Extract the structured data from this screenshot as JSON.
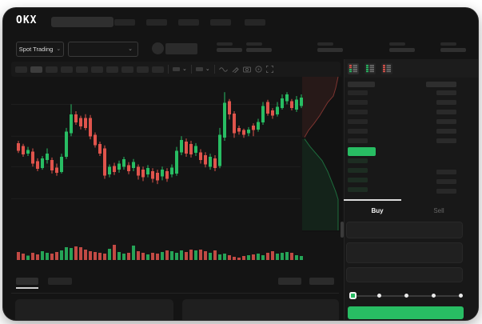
{
  "app": {
    "logo_text": "OKX"
  },
  "colors": {
    "green": "#28bd63",
    "red": "#e0544c",
    "accent": "#28bd63"
  },
  "header": {
    "nav_item_count": 5
  },
  "market_bar": {
    "selector_label": "Spot Trading",
    "selector_chevron": "⌄",
    "pair_chevron": "⌄",
    "stat_group_count": 5
  },
  "chart_toolbar": {
    "interval_pill_count": 10,
    "active_interval_index": 1,
    "icon_names": [
      "wave-icon",
      "pencil-icon",
      "camera-icon",
      "target-icon",
      "expand-icon"
    ]
  },
  "orderbook": {
    "view_toggles": [
      "combined-book",
      "bids-only",
      "asks-only"
    ],
    "active_toggle_index": 0,
    "ask_row_count": 6,
    "bid_row_count": 4,
    "last_price_color": "#28bd63"
  },
  "trade_panel": {
    "tabs": [
      {
        "label": "Buy",
        "active": true
      },
      {
        "label": "Sell",
        "active": false
      }
    ],
    "input_field_count": 3,
    "slider": {
      "stops": 5,
      "active_stop": 0
    },
    "submit_color": "#28bd63"
  },
  "bottom_bar": {
    "tab_count": 2,
    "active_tab_index": 0,
    "right_pill_count": 2,
    "panel_count": 2
  },
  "chart_data": {
    "type": "candlestick",
    "title": "",
    "xlabel": "",
    "ylabel": "",
    "price_scale": [
      0,
      100
    ],
    "grid": true,
    "gridlines_price": [
      84,
      63,
      43,
      22
    ],
    "candles": [
      [
        58.5,
        60,
        52,
        53.5
      ],
      [
        56.5,
        58,
        49.5,
        51
      ],
      [
        51.5,
        56,
        50,
        54
      ],
      [
        53,
        55,
        43,
        45
      ],
      [
        46.5,
        48.5,
        40,
        41.5
      ],
      [
        42,
        50,
        41,
        48.5
      ],
      [
        47.5,
        55,
        45,
        51.5
      ],
      [
        47.5,
        49,
        38.5,
        40.5
      ],
      [
        42.5,
        45,
        37,
        39
      ],
      [
        39.5,
        51.5,
        38.5,
        49.5
      ],
      [
        49.5,
        68.5,
        48,
        66
      ],
      [
        65,
        84,
        63,
        77.5
      ],
      [
        77.5,
        79.5,
        70.5,
        72
      ],
      [
        75,
        76.5,
        67.5,
        69.5
      ],
      [
        75,
        77.5,
        67,
        68.5
      ],
      [
        75,
        77,
        61,
        63
      ],
      [
        64,
        65.5,
        55.5,
        57
      ],
      [
        58,
        59.5,
        50,
        51.5
      ],
      [
        55,
        57,
        35,
        37
      ],
      [
        38,
        44.5,
        36,
        43
      ],
      [
        43.5,
        45.5,
        37.5,
        39.5
      ],
      [
        41,
        47,
        39,
        45
      ],
      [
        43,
        49.5,
        41,
        48
      ],
      [
        44,
        46,
        38,
        40
      ],
      [
        42,
        48,
        40,
        46
      ],
      [
        43,
        44.5,
        34.5,
        37
      ],
      [
        41,
        43,
        33.5,
        36
      ],
      [
        38,
        44,
        36,
        42
      ],
      [
        40,
        42,
        32.5,
        35
      ],
      [
        39,
        41,
        31.5,
        34
      ],
      [
        36.5,
        43,
        34,
        41
      ],
      [
        40,
        42,
        33,
        35
      ],
      [
        38,
        44.5,
        36,
        42.5
      ],
      [
        38.5,
        56,
        37,
        53.5
      ],
      [
        52.5,
        63,
        50.5,
        60.5
      ],
      [
        59.5,
        61.5,
        49.5,
        51.5
      ],
      [
        58,
        60,
        49,
        51
      ],
      [
        52,
        58.5,
        50,
        56.5
      ],
      [
        52.5,
        54.5,
        45,
        47.5
      ],
      [
        50.5,
        52.5,
        42.5,
        44.5
      ],
      [
        43,
        51.5,
        41,
        49.5
      ],
      [
        48.5,
        50.5,
        40,
        42
      ],
      [
        43.5,
        68.5,
        42,
        64
      ],
      [
        62,
        92,
        60,
        85
      ],
      [
        86,
        87.5,
        74,
        77.5
      ],
      [
        78,
        79.5,
        62,
        65
      ],
      [
        68.5,
        70,
        64,
        66
      ],
      [
        67,
        68,
        62,
        64
      ],
      [
        65,
        69,
        63,
        67.5
      ],
      [
        70,
        71.5,
        63,
        67
      ],
      [
        67.5,
        74.5,
        66,
        72.5
      ],
      [
        72,
        85.5,
        70.5,
        83
      ],
      [
        85.5,
        87,
        76.5,
        78
      ],
      [
        80,
        81.5,
        74.5,
        76.5
      ],
      [
        77.5,
        85.5,
        76,
        82.5
      ],
      [
        81.5,
        90.5,
        80.5,
        88
      ],
      [
        86,
        92,
        84,
        90.5
      ],
      [
        86,
        87.5,
        80,
        81.5
      ],
      [
        80.5,
        89.5,
        79,
        87
      ],
      [
        83,
        90.5,
        81.5,
        88.5
      ]
    ],
    "volume": [
      52,
      42,
      28,
      47,
      37,
      58,
      47,
      42,
      53,
      63,
      84,
      79,
      89,
      84,
      68,
      58,
      53,
      47,
      42,
      74,
      100,
      53,
      42,
      47,
      95,
      58,
      47,
      37,
      47,
      42,
      53,
      63,
      58,
      47,
      63,
      53,
      68,
      63,
      68,
      58,
      47,
      63,
      37,
      42,
      32,
      21,
      16,
      26,
      32,
      37,
      42,
      32,
      47,
      58,
      42,
      47,
      53,
      47,
      32,
      26
    ],
    "depth": {
      "asks_line": [
        [
          0.06,
          0.39
        ],
        [
          0.16,
          0.345
        ],
        [
          0.3,
          0.3
        ],
        [
          0.44,
          0.25
        ],
        [
          0.64,
          0.165
        ],
        [
          0.78,
          0.124
        ],
        [
          0.84,
          0.072
        ],
        [
          0.9,
          0.0
        ]
      ],
      "bids_line": [
        [
          0.06,
          0.4
        ],
        [
          0.2,
          0.45
        ],
        [
          0.5,
          0.54
        ],
        [
          0.64,
          0.61
        ],
        [
          0.84,
          0.74
        ],
        [
          0.9,
          0.79
        ],
        [
          0.9,
          0.99
        ]
      ]
    }
  }
}
